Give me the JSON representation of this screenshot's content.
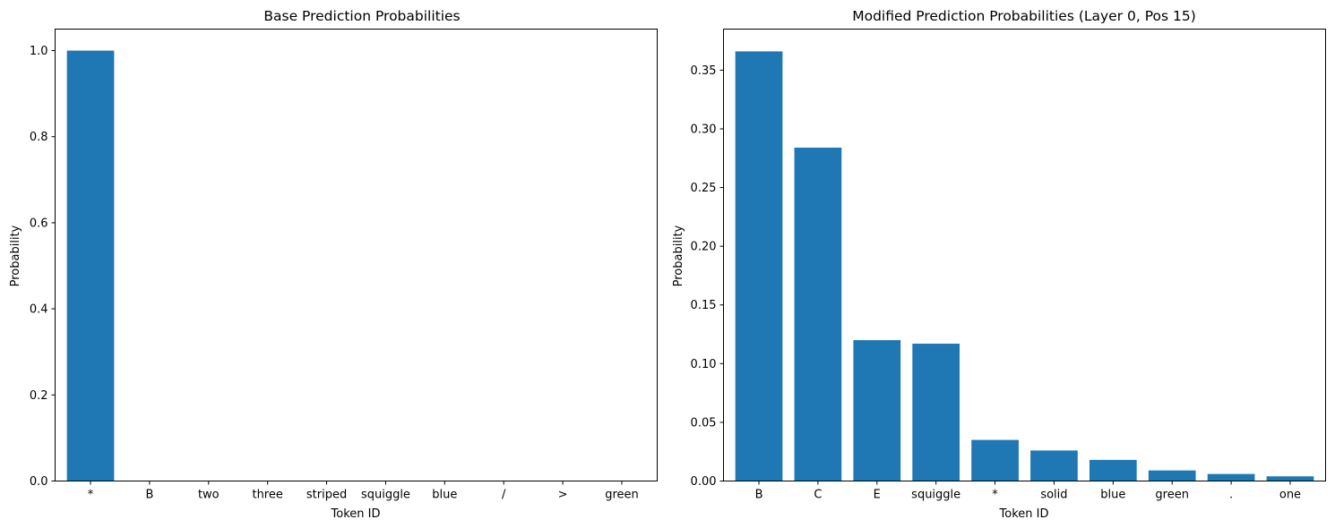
{
  "chart_data": [
    {
      "type": "bar",
      "title": "Base Prediction Probabilities",
      "xlabel": "Token ID",
      "ylabel": "Probability",
      "categories": [
        "*",
        "B",
        "two",
        "three",
        "striped",
        "squiggle",
        "blue",
        "/",
        ">",
        "green"
      ],
      "values": [
        1.0,
        0.0,
        0.0,
        0.0,
        0.0,
        0.0,
        0.0,
        0.0,
        0.0,
        0.0
      ],
      "ylim": [
        0,
        1.05
      ],
      "yticks": [
        "0.0",
        "0.2",
        "0.4",
        "0.6",
        "0.8",
        "1.0"
      ],
      "ytick_values": [
        0,
        0.2,
        0.4,
        0.6,
        0.8,
        1.0
      ],
      "color": "#1f77b4",
      "grid": false,
      "legend": "none"
    },
    {
      "type": "bar",
      "title": "Modified Prediction Probabilities (Layer 0, Pos 15)",
      "xlabel": "Token ID",
      "ylabel": "Probability",
      "categories": [
        "B",
        "C",
        "E",
        "squiggle",
        "*",
        "solid",
        "blue",
        "green",
        ".",
        "one"
      ],
      "values": [
        0.366,
        0.284,
        0.12,
        0.117,
        0.035,
        0.026,
        0.018,
        0.009,
        0.006,
        0.004
      ],
      "ylim": [
        0,
        0.385
      ],
      "yticks": [
        "0.00",
        "0.05",
        "0.10",
        "0.15",
        "0.20",
        "0.25",
        "0.30",
        "0.35"
      ],
      "ytick_values": [
        0,
        0.05,
        0.1,
        0.15,
        0.2,
        0.25,
        0.3,
        0.35
      ],
      "color": "#1f77b4",
      "grid": false,
      "legend": "none"
    }
  ]
}
